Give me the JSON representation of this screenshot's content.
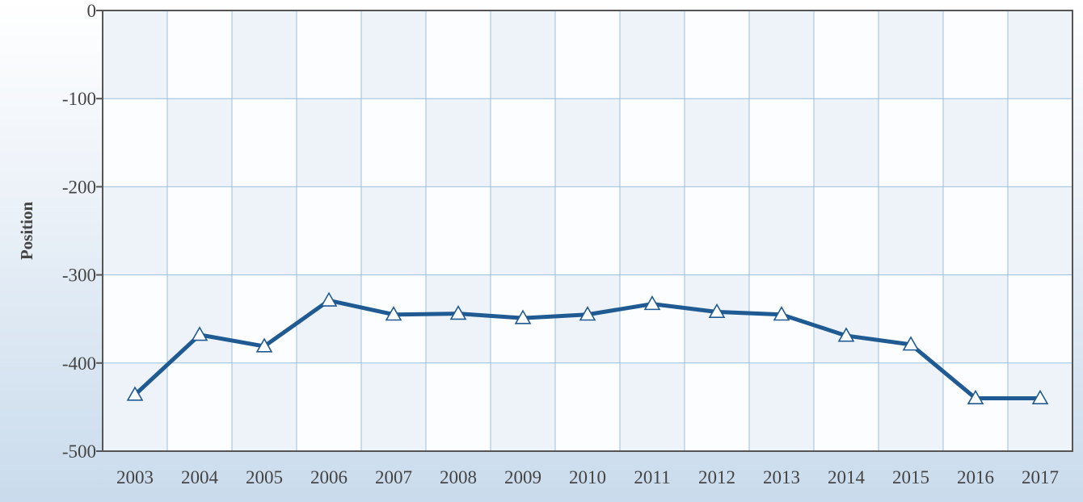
{
  "chart_data": {
    "type": "line",
    "ylabel": "Position",
    "xlabel": "",
    "title": "",
    "ylim": [
      -500,
      0
    ],
    "y_ticks": [
      "0",
      "-100",
      "-200",
      "-300",
      "-400",
      "-500"
    ],
    "y_tick_values": [
      0,
      -100,
      -200,
      -300,
      -400,
      -500
    ],
    "x": [
      "2003",
      "2004",
      "2005",
      "2006",
      "2007",
      "2008",
      "2009",
      "2010",
      "2011",
      "2012",
      "2013",
      "2014",
      "2015",
      "2016",
      "2017"
    ],
    "series": [
      {
        "values": [
          -436,
          -368,
          -381,
          -329,
          -345,
          -344,
          -349,
          -345,
          -333,
          -342,
          -345,
          -369,
          -379,
          -440,
          -440
        ],
        "color": "#1f5a92",
        "marker": "triangle"
      }
    ],
    "grid": true,
    "colors": {
      "line": "#1f5a92",
      "grid": "#9cc0dc",
      "axis": "#555555",
      "band": "#edf3f8"
    }
  }
}
